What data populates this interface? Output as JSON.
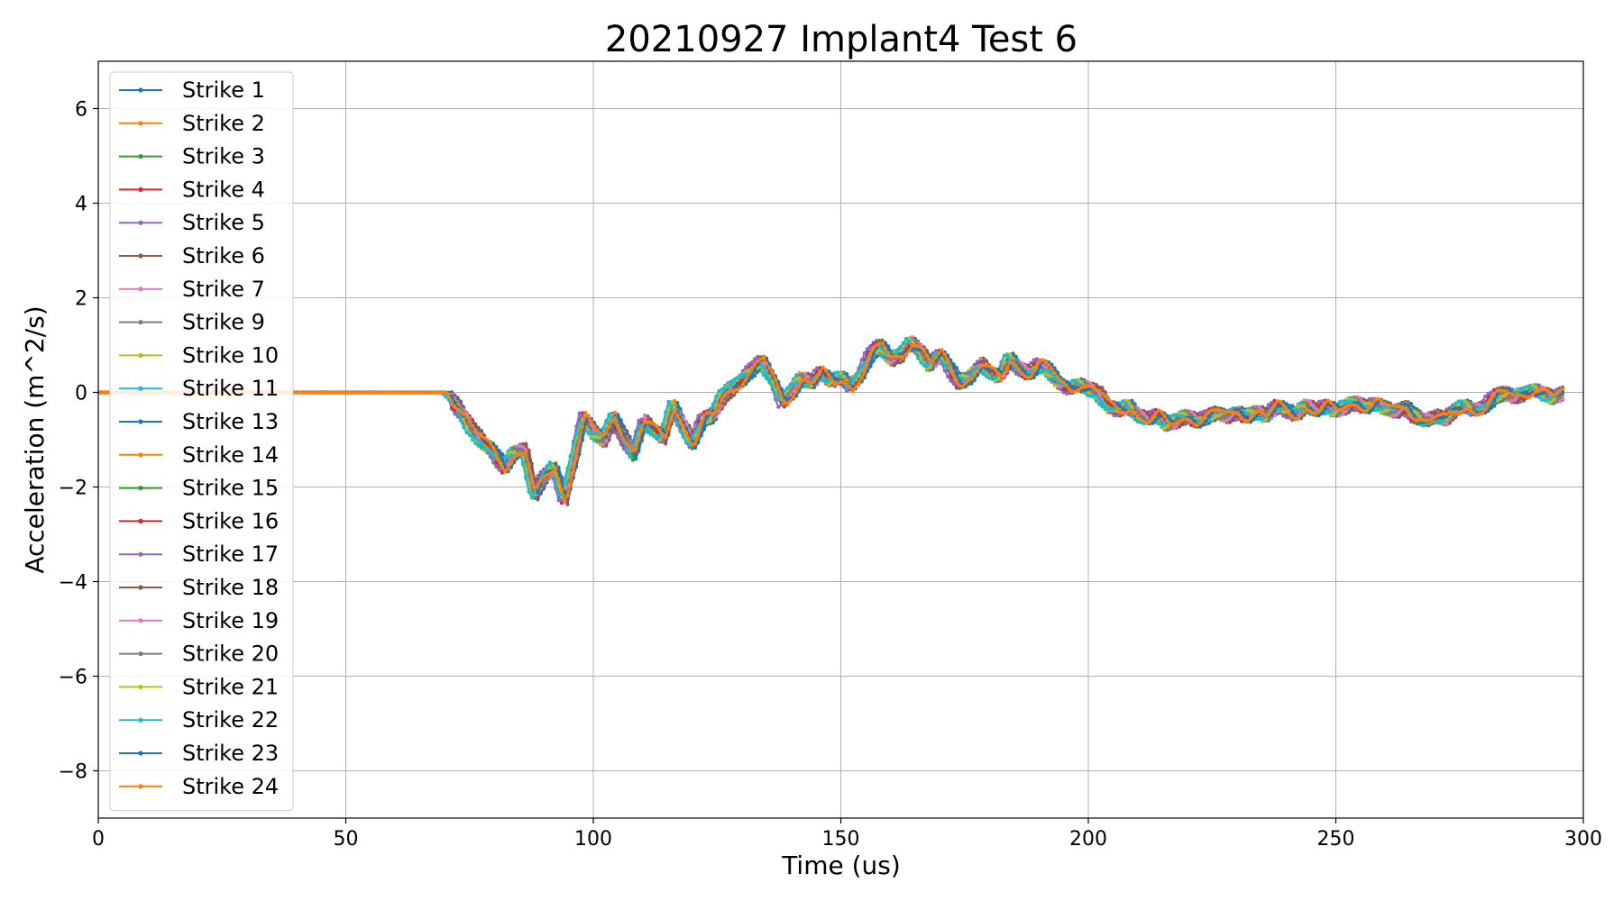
{
  "chart_data": {
    "type": "line",
    "title": "20210927 Implant4 Test 6",
    "xlabel": "Time (us)",
    "ylabel": "Acceleration (m^2/s)",
    "xlim": [
      0,
      300
    ],
    "ylim": [
      -9,
      7
    ],
    "x_ticks": [
      0,
      50,
      100,
      150,
      200,
      250,
      300
    ],
    "y_ticks": [
      6,
      4,
      2,
      0,
      -2,
      -4,
      -6,
      -8
    ],
    "grid": true,
    "legend_position": "top-left",
    "marker": "dot",
    "base_curve": {
      "x": [
        0,
        70,
        72,
        75,
        78,
        80,
        82,
        84,
        86,
        88,
        90,
        92,
        94,
        96,
        98,
        100,
        102,
        104,
        106,
        108,
        110,
        112,
        114,
        116,
        118,
        120,
        122,
        124,
        126,
        128,
        130,
        132,
        134,
        136,
        138,
        140,
        142,
        144,
        146,
        148,
        150,
        152,
        154,
        156,
        158,
        160,
        162,
        164,
        166,
        168,
        170,
        172,
        174,
        176,
        178,
        180,
        182,
        184,
        186,
        188,
        190,
        192,
        194,
        196,
        198,
        200,
        202,
        204,
        206,
        208,
        210,
        212,
        214,
        216,
        218,
        220,
        222,
        224,
        226,
        228,
        230,
        232,
        234,
        236,
        238,
        240,
        242,
        244,
        246,
        248,
        250,
        252,
        254,
        256,
        258,
        260,
        262,
        264,
        266,
        268,
        270,
        272,
        274,
        276,
        278,
        280,
        282,
        284,
        286,
        288,
        290,
        292,
        294,
        296
      ],
      "y": [
        0,
        0,
        -0.2,
        -0.7,
        -1.1,
        -1.3,
        -1.6,
        -1.3,
        -1.2,
        -2.2,
        -1.8,
        -1.6,
        -2.3,
        -1.4,
        -0.5,
        -0.8,
        -1.0,
        -0.5,
        -0.9,
        -1.3,
        -0.6,
        -0.8,
        -1.0,
        -0.3,
        -0.7,
        -1.1,
        -0.6,
        -0.5,
        -0.1,
        0.1,
        0.3,
        0.5,
        0.7,
        0.3,
        -0.2,
        0.0,
        0.3,
        0.2,
        0.4,
        0.2,
        0.3,
        0.1,
        0.4,
        0.8,
        1.0,
        0.7,
        0.8,
        1.1,
        0.9,
        0.6,
        0.8,
        0.5,
        0.2,
        0.3,
        0.6,
        0.4,
        0.3,
        0.7,
        0.5,
        0.4,
        0.6,
        0.5,
        0.2,
        0.1,
        0.2,
        0.1,
        0.0,
        -0.3,
        -0.4,
        -0.3,
        -0.5,
        -0.6,
        -0.5,
        -0.7,
        -0.6,
        -0.5,
        -0.6,
        -0.5,
        -0.4,
        -0.5,
        -0.4,
        -0.5,
        -0.4,
        -0.5,
        -0.3,
        -0.4,
        -0.5,
        -0.3,
        -0.4,
        -0.3,
        -0.4,
        -0.3,
        -0.2,
        -0.3,
        -0.2,
        -0.3,
        -0.4,
        -0.3,
        -0.5,
        -0.6,
        -0.5,
        -0.6,
        -0.4,
        -0.3,
        -0.4,
        -0.3,
        -0.1,
        0.0,
        -0.1,
        0.0,
        0.1,
        0.0,
        -0.1,
        0.0
      ]
    },
    "series": [
      {
        "name": "Strike 1",
        "color": "#1f77b4"
      },
      {
        "name": "Strike 2",
        "color": "#ff7f0e"
      },
      {
        "name": "Strike 3",
        "color": "#2ca02c"
      },
      {
        "name": "Strike 4",
        "color": "#d62728"
      },
      {
        "name": "Strike 5",
        "color": "#9467bd"
      },
      {
        "name": "Strike 6",
        "color": "#8c564b"
      },
      {
        "name": "Strike 7",
        "color": "#e377c2"
      },
      {
        "name": "Strike 9",
        "color": "#7f7f7f"
      },
      {
        "name": "Strike 10",
        "color": "#bcbd22"
      },
      {
        "name": "Strike 11",
        "color": "#17becf"
      },
      {
        "name": "Strike 13",
        "color": "#1f77b4"
      },
      {
        "name": "Strike 14",
        "color": "#ff7f0e"
      },
      {
        "name": "Strike 15",
        "color": "#2ca02c"
      },
      {
        "name": "Strike 16",
        "color": "#d62728"
      },
      {
        "name": "Strike 17",
        "color": "#9467bd"
      },
      {
        "name": "Strike 18",
        "color": "#8c564b"
      },
      {
        "name": "Strike 19",
        "color": "#e377c2"
      },
      {
        "name": "Strike 20",
        "color": "#7f7f7f"
      },
      {
        "name": "Strike 21",
        "color": "#bcbd22"
      },
      {
        "name": "Strike 22",
        "color": "#17becf"
      },
      {
        "name": "Strike 23",
        "color": "#1f77b4"
      },
      {
        "name": "Strike 24",
        "color": "#ff7f0e"
      }
    ]
  }
}
